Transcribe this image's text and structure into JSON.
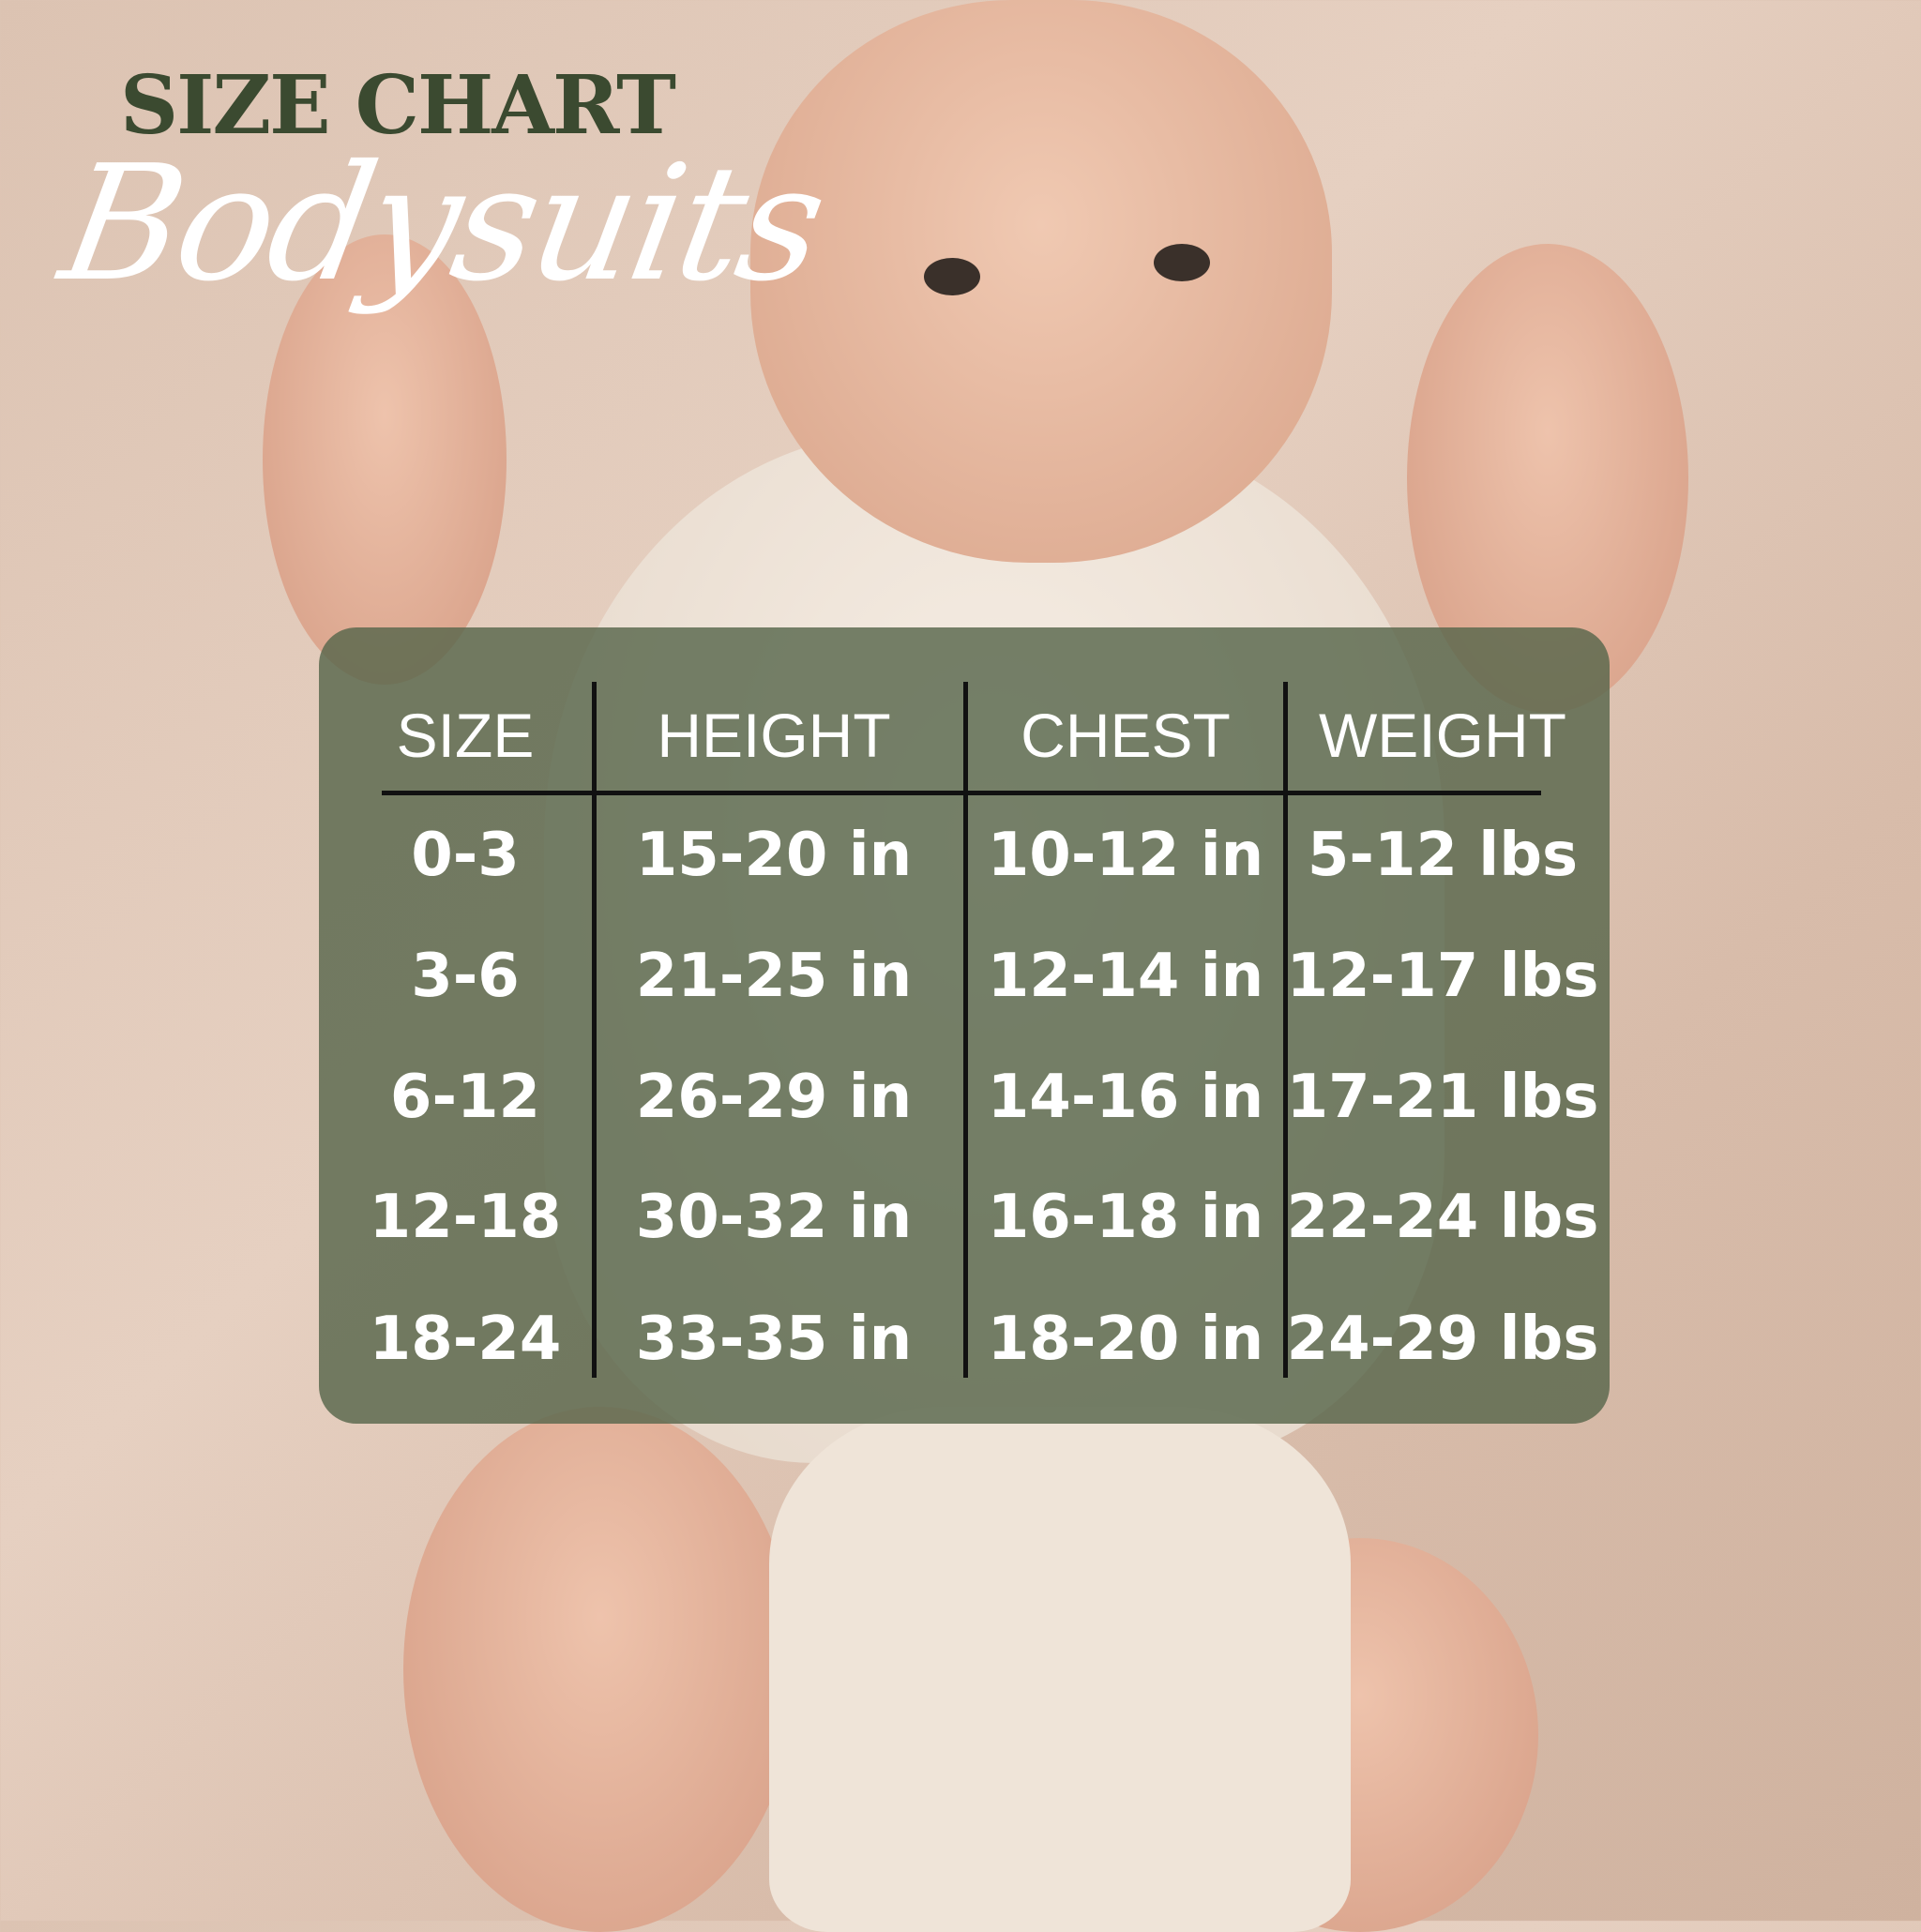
{
  "header": {
    "title": "SIZE CHART",
    "subtitle": "Bodysuits"
  },
  "table": {
    "columns": [
      "SIZE",
      "HEIGHT",
      "CHEST",
      "WEIGHT"
    ],
    "rows": [
      [
        "0-3",
        "15-20 in",
        "10-12 in",
        "5-12 lbs"
      ],
      [
        "3-6",
        "21-25 in",
        "12-14 in",
        "12-17 lbs"
      ],
      [
        "6-12",
        "26-29 in",
        "14-16 in",
        "17-21 lbs"
      ],
      [
        "12-18",
        "30-32 in",
        "16-18 in",
        "22-24 lbs"
      ],
      [
        "18-24",
        "33-35 in",
        "18-20 in",
        "24-29 lbs"
      ]
    ]
  },
  "colors": {
    "title": "#3b4a30",
    "panel": "#58664c",
    "text": "#ffffff"
  }
}
